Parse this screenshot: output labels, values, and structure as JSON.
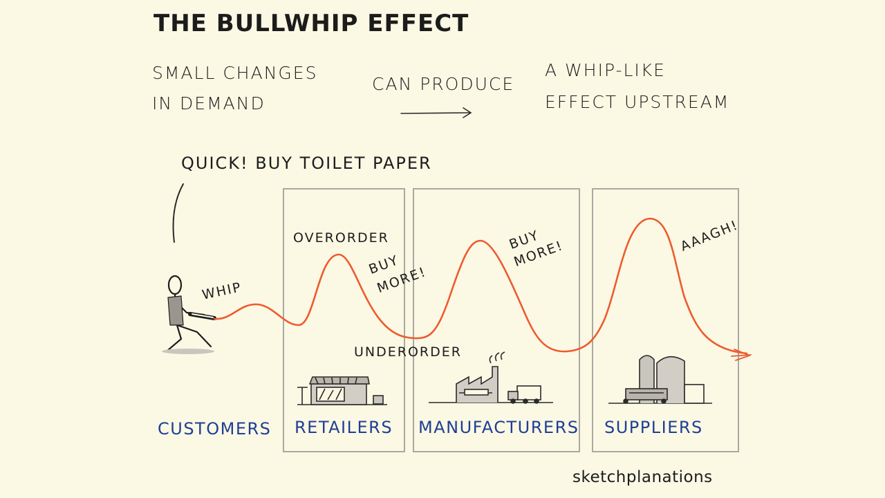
{
  "title": "THE BULLWHIP EFFECT",
  "intro": {
    "left_line1": "SMALL CHANGES",
    "left_line2": "IN DEMAND",
    "middle": "CAN PRODUCE",
    "right_line1": "A WHIP-LIKE",
    "right_line2": "EFFECT UPSTREAM"
  },
  "speech": "QUICK! BUY TOILET PAPER",
  "annotations": {
    "whip": "WHIP",
    "overorder": "OVERORDER",
    "underorder": "UNDERORDER",
    "buy_more_1_line1": "BUY",
    "buy_more_1_line2": "MORE!",
    "buy_more_2_line1": "BUY",
    "buy_more_2_line2": "MORE!",
    "aaagh": "AAAGH!"
  },
  "stages": {
    "customers": "CUSTOMERS",
    "retailers": "RETAILERS",
    "manufacturers": "MANUFACTURERS",
    "suppliers": "SUPPLIERS"
  },
  "brand": "sketchplanations",
  "colors": {
    "background": "#fbf8e4",
    "whip": "#ee5a2f",
    "stage_labels": "#1f3f93",
    "ink": "#1c1c1c"
  }
}
